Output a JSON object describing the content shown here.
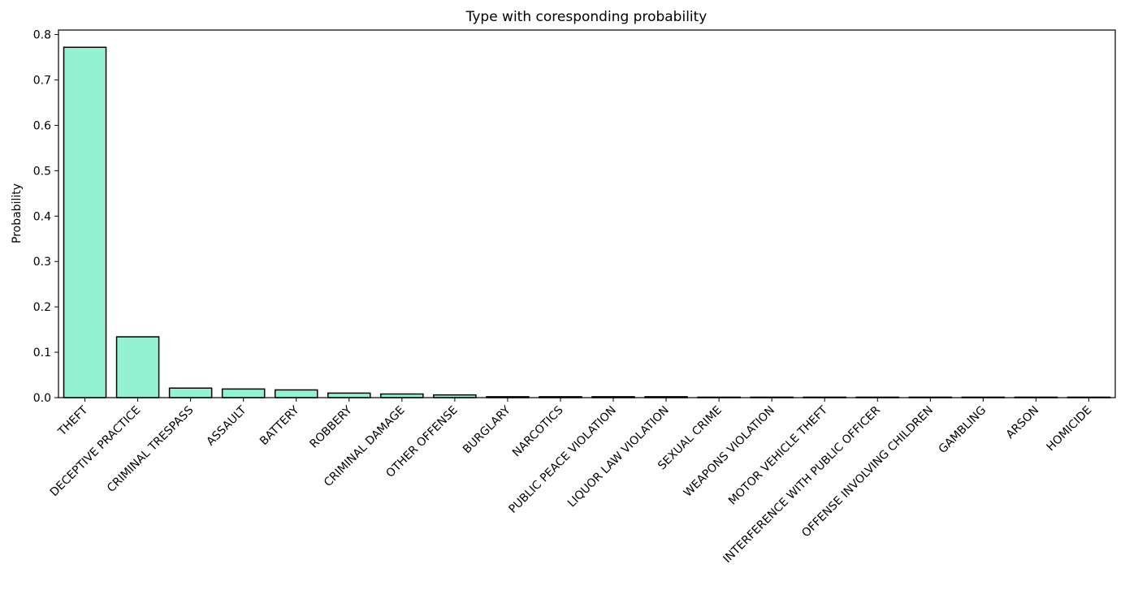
{
  "chart_data": {
    "type": "bar",
    "title": "Type with coresponding probability",
    "xlabel": "",
    "ylabel": "Probability",
    "ylim": [
      0,
      0.81
    ],
    "yticks": [
      "0.0",
      "0.1",
      "0.2",
      "0.3",
      "0.4",
      "0.5",
      "0.6",
      "0.7",
      "0.8"
    ],
    "grid": false,
    "legend": "none",
    "categories": [
      "THEFT",
      "DECEPTIVE PRACTICE",
      "CRIMINAL TRESPASS",
      "ASSAULT",
      "BATTERY",
      "ROBBERY",
      "CRIMINAL DAMAGE",
      "OTHER OFFENSE",
      "BURGLARY",
      "NARCOTICS",
      "PUBLIC PEACE VIOLATION",
      "LIQUOR LAW VIOLATION",
      "SEXUAL CRIME",
      "WEAPONS VIOLATION",
      "MOTOR VEHICLE THEFT",
      "INTERFERENCE WITH PUBLIC OFFICER",
      "OFFENSE INVOLVING CHILDREN",
      "GAMBLING",
      "ARSON",
      "HOMICIDE"
    ],
    "values": [
      0.772,
      0.134,
      0.021,
      0.019,
      0.017,
      0.01,
      0.008,
      0.006,
      0.002,
      0.002,
      0.002,
      0.002,
      0.001,
      0.001,
      0.001,
      0.001,
      0.001,
      0.001,
      0.001,
      0.001
    ],
    "colors": {
      "bar_fill": "#92F2D2",
      "bar_edge": "#000000"
    }
  }
}
